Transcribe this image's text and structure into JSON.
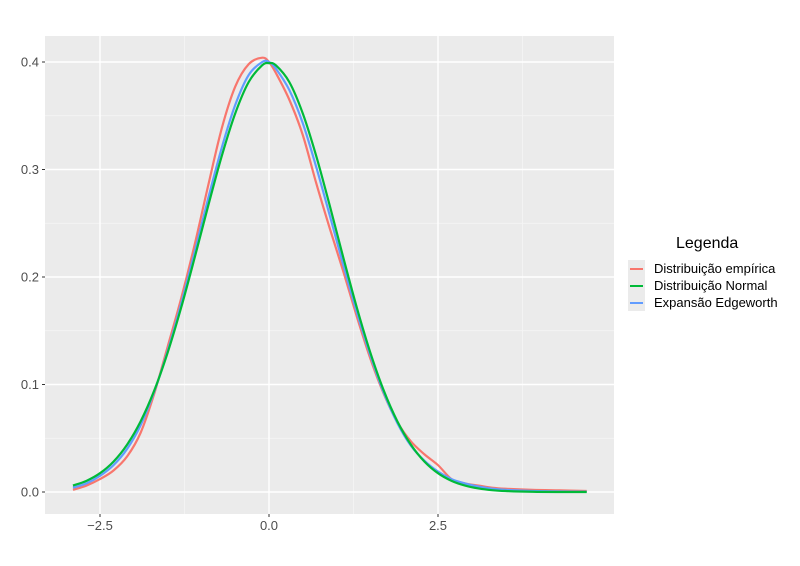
{
  "chart_data": {
    "type": "line",
    "title": "",
    "xlabel": "",
    "ylabel": "",
    "xlim": [
      -3.2,
      5.1
    ],
    "ylim": [
      -0.02,
      0.42
    ],
    "x_ticks": [
      -2.5,
      0.0,
      2.5
    ],
    "x_tick_labels": [
      "-2.5",
      "0.0",
      "2.5"
    ],
    "y_ticks": [
      0.0,
      0.1,
      0.2,
      0.3,
      0.4
    ],
    "y_tick_labels": [
      "0.0",
      "0.1",
      "0.2",
      "0.3",
      "0.4"
    ],
    "grid": true,
    "legend_position": "right",
    "legend_title": "Legenda",
    "x": [
      -2.9,
      -2.7,
      -2.5,
      -2.3,
      -2.1,
      -1.9,
      -1.7,
      -1.5,
      -1.3,
      -1.1,
      -0.9,
      -0.7,
      -0.5,
      -0.3,
      -0.1,
      0.0,
      0.1,
      0.3,
      0.5,
      0.7,
      0.9,
      1.1,
      1.3,
      1.5,
      1.7,
      1.9,
      2.1,
      2.3,
      2.5,
      2.7,
      2.9,
      3.1,
      3.3,
      3.5,
      3.9,
      4.3,
      4.7
    ],
    "series": [
      {
        "name": "Distribuição empírica",
        "color": "#F8766D",
        "values": [
          0.002,
          0.006,
          0.012,
          0.02,
          0.033,
          0.055,
          0.091,
          0.135,
          0.18,
          0.23,
          0.285,
          0.338,
          0.377,
          0.398,
          0.404,
          0.4,
          0.39,
          0.365,
          0.332,
          0.287,
          0.245,
          0.205,
          0.163,
          0.124,
          0.091,
          0.065,
          0.047,
          0.035,
          0.025,
          0.012,
          0.008,
          0.006,
          0.004,
          0.003,
          0.002,
          0.0015,
          0.001
        ]
      },
      {
        "name": "Distribuição Normal",
        "color": "#00BA38",
        "values": [
          0.006,
          0.0104,
          0.0175,
          0.0283,
          0.044,
          0.0656,
          0.094,
          0.1295,
          0.1714,
          0.2179,
          0.2661,
          0.3123,
          0.3521,
          0.3814,
          0.397,
          0.3989,
          0.397,
          0.3814,
          0.3521,
          0.3123,
          0.2661,
          0.2179,
          0.1714,
          0.1295,
          0.094,
          0.0656,
          0.044,
          0.0283,
          0.0175,
          0.0104,
          0.006,
          0.0033,
          0.0017,
          0.0009,
          0.0002,
          0.0,
          0.0
        ]
      },
      {
        "name": "Expansão Edgeworth",
        "color": "#619CFF",
        "values": [
          0.004,
          0.008,
          0.015,
          0.025,
          0.04,
          0.062,
          0.093,
          0.131,
          0.175,
          0.223,
          0.273,
          0.32,
          0.36,
          0.388,
          0.4,
          0.4,
          0.394,
          0.374,
          0.343,
          0.302,
          0.257,
          0.211,
          0.167,
          0.127,
          0.092,
          0.064,
          0.043,
          0.029,
          0.019,
          0.012,
          0.008,
          0.005,
          0.003,
          0.002,
          0.001,
          0.0005,
          0.0003
        ]
      }
    ]
  },
  "legend": {
    "title": "Legenda",
    "items": [
      {
        "label": "Distribuição empírica",
        "color": "#F8766D"
      },
      {
        "label": "Distribuição Normal",
        "color": "#00BA38"
      },
      {
        "label": "Expansão Edgeworth",
        "color": "#619CFF"
      }
    ]
  },
  "colors": {
    "panel_background": "#EBEBEB",
    "grid_major": "#FFFFFF",
    "axis_text": "#4D4D4D"
  }
}
